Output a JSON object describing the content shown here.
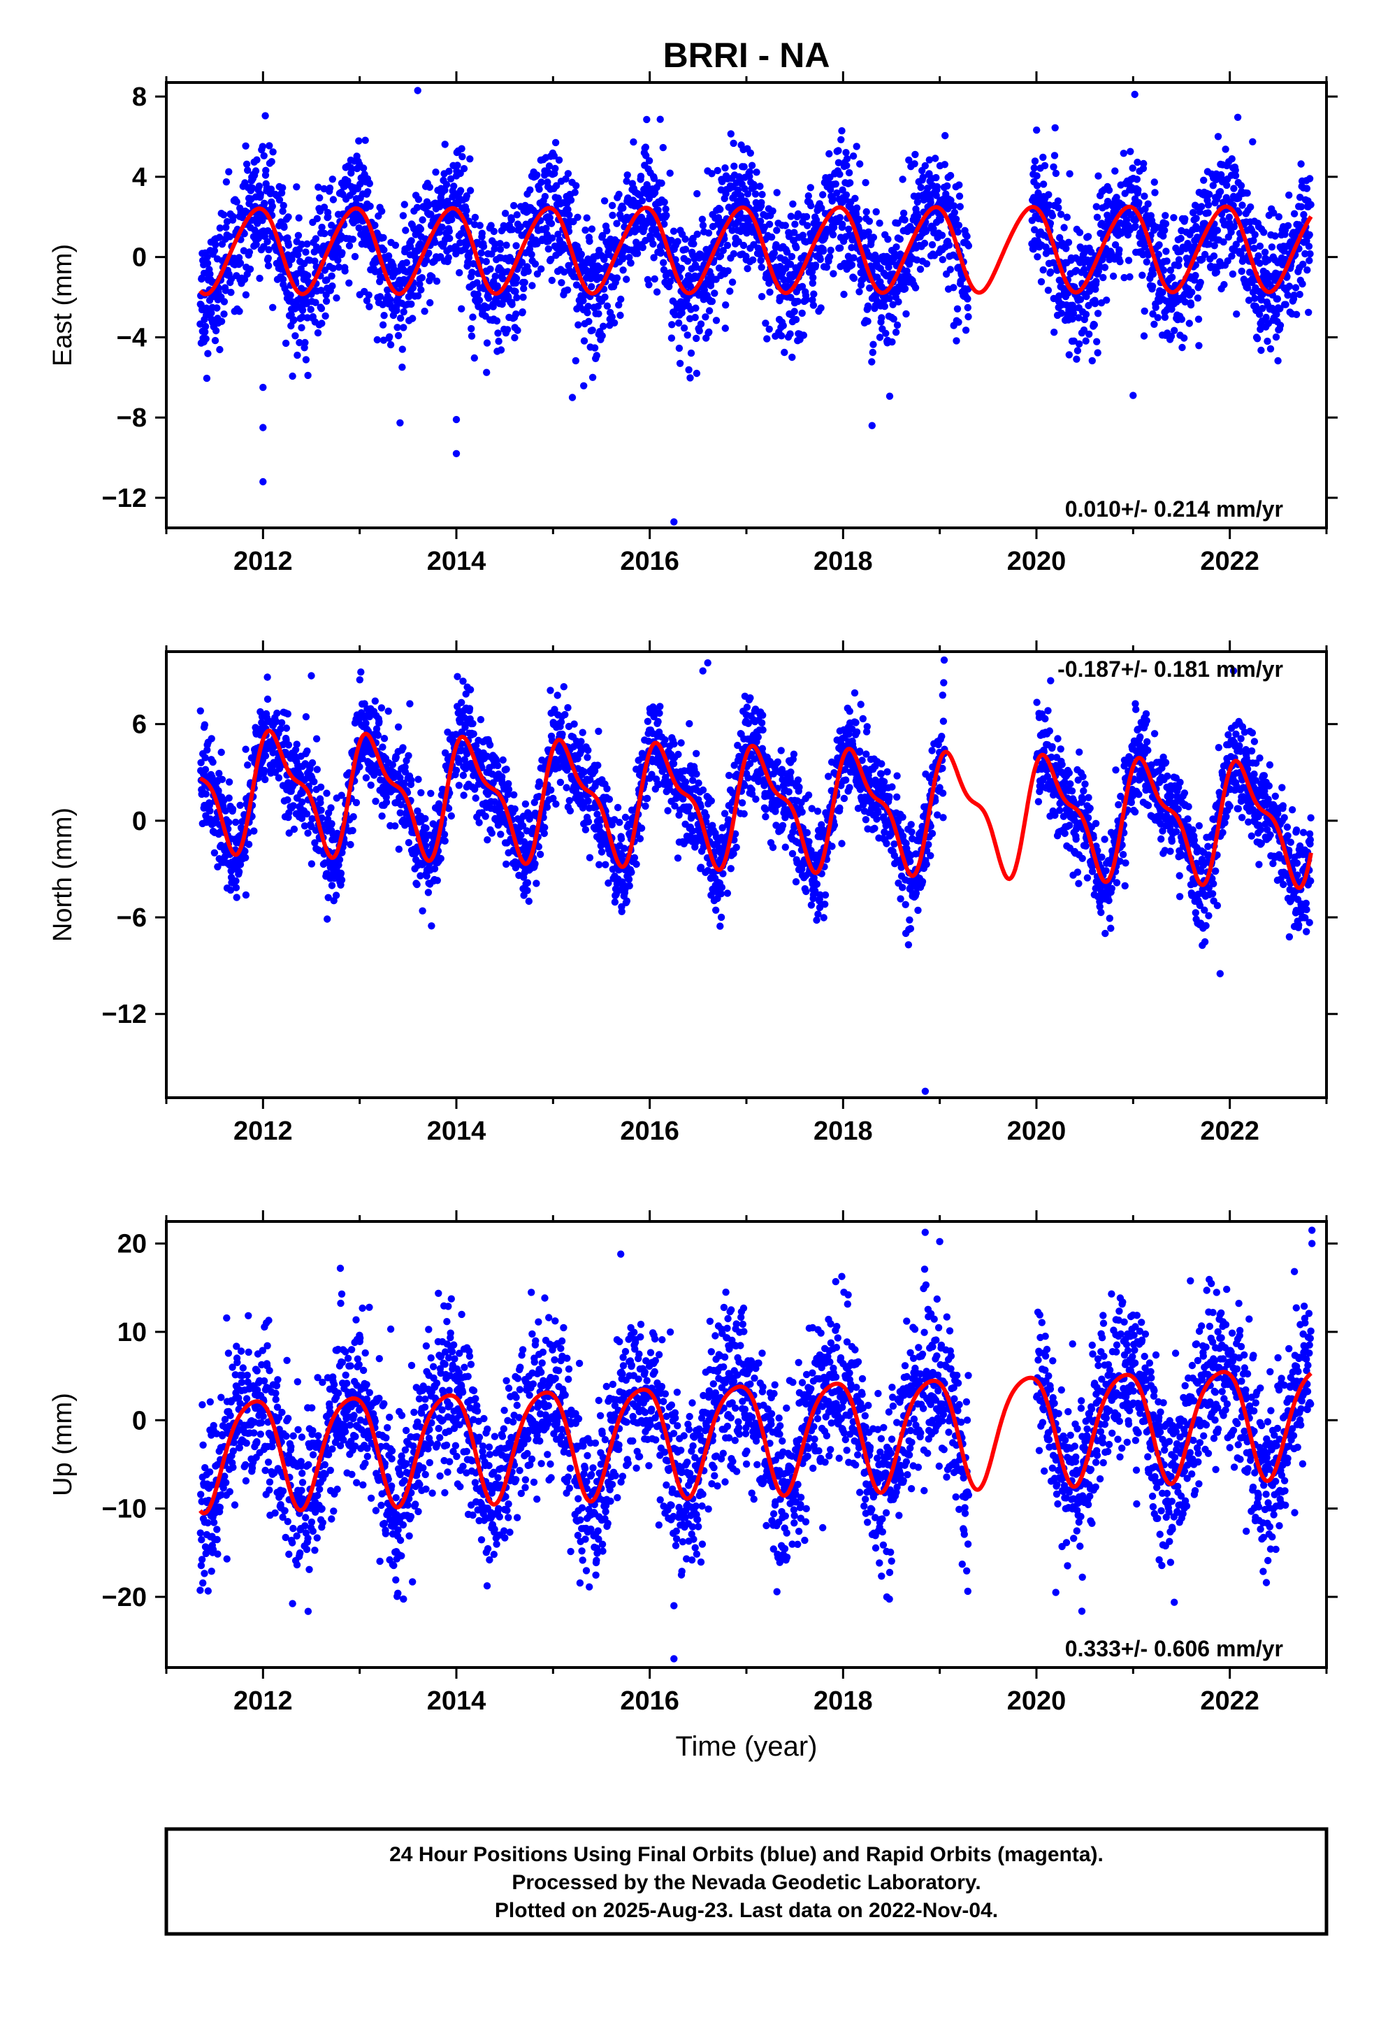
{
  "title": "BRRI - NA",
  "colors": {
    "dots": "#0000ff",
    "model": "#ff0000",
    "frame": "#000000"
  },
  "footer": {
    "line1": "24 Hour Positions Using Final Orbits (blue) and Rapid Orbits (magenta).",
    "line2": "Processed by the Nevada Geodetic Laboratory.",
    "line3": "Plotted on 2025-Aug-23. Last data on 2022-Nov-04."
  },
  "chart_data": [
    {
      "type": "scatter",
      "ylabel": "East (mm)",
      "xlabel": "",
      "rate": "0.010+/- 0.214 mm/yr",
      "rate_position": "bottom-right",
      "xlim": [
        2011.0,
        2023.0
      ],
      "ylim": [
        -13.5,
        8.7
      ],
      "x_ticks": [
        2012,
        2014,
        2016,
        2018,
        2020,
        2022
      ],
      "y_ticks": [
        -12,
        -8,
        -4,
        0,
        4,
        8
      ],
      "y_tick_labels": [
        "−12",
        "−8",
        "−4",
        "0",
        "4",
        "8"
      ],
      "model": {
        "offset": 0.4,
        "rate": 0.01,
        "annual_amp": 2.1,
        "annual_phase": 2.0,
        "semi_amp": 0.2,
        "semi_phase": 0.5
      },
      "data_span": [
        2011.35,
        2022.84
      ],
      "scatter_sd": 1.6,
      "gaps": [
        [
          2019.3,
          2019.95
        ]
      ],
      "outliers": [
        [
          2012.0,
          -11.2
        ],
        [
          2012.0,
          -8.5
        ],
        [
          2012.0,
          -6.5
        ],
        [
          2014.0,
          -9.8
        ],
        [
          2014.0,
          -8.1
        ],
        [
          2013.6,
          8.3
        ],
        [
          2016.25,
          -13.2
        ],
        [
          2018.3,
          -8.4
        ],
        [
          2015.2,
          -7.0
        ],
        [
          2021.0,
          -6.9
        ]
      ]
    },
    {
      "type": "scatter",
      "ylabel": "North (mm)",
      "xlabel": "",
      "rate": "-0.187+/- 0.181 mm/yr",
      "rate_position": "top-right",
      "xlim": [
        2011.0,
        2023.0
      ],
      "ylim": [
        -17.2,
        10.5
      ],
      "x_ticks": [
        2012,
        2014,
        2016,
        2018,
        2020,
        2022
      ],
      "y_ticks": [
        -12,
        -6,
        0,
        6
      ],
      "y_tick_labels": [
        "−12",
        "−6",
        "0",
        "6"
      ],
      "model": {
        "offset": 1.0,
        "rate": -0.187,
        "annual_amp": 3.2,
        "annual_phase": 0.6,
        "semi_amp": 1.3,
        "semi_phase": 1.5
      },
      "data_span": [
        2011.35,
        2022.84
      ],
      "scatter_sd": 1.5,
      "gaps": [
        [
          2019.05,
          2020.0
        ]
      ],
      "outliers": [
        [
          2018.85,
          -16.8
        ],
        [
          2012.5,
          9.0
        ],
        [
          2016.6,
          9.8
        ],
        [
          2021.9,
          -9.5
        ],
        [
          2016.55,
          9.3
        ]
      ]
    },
    {
      "type": "scatter",
      "ylabel": "Up (mm)",
      "xlabel": "Time (year)",
      "rate": "0.333+/- 0.606 mm/yr",
      "rate_position": "bottom-right",
      "xlim": [
        2011.0,
        2023.0
      ],
      "ylim": [
        -28.0,
        22.5
      ],
      "x_ticks": [
        2012,
        2014,
        2016,
        2018,
        2020,
        2022
      ],
      "y_ticks": [
        -20,
        -10,
        0,
        10,
        20
      ],
      "y_tick_labels": [
        "−20",
        "−10",
        "0",
        "10",
        "20"
      ],
      "model": {
        "offset": -1.5,
        "rate": 0.333,
        "annual_amp": 6.2,
        "annual_phase": 2.2,
        "semi_amp": 1.0,
        "semi_phase": 0.0
      },
      "data_span": [
        2011.35,
        2022.84
      ],
      "scatter_sd": 4.5,
      "gaps": [
        [
          2019.3,
          2020.0
        ]
      ],
      "outliers": [
        [
          2016.25,
          -27.0
        ],
        [
          2016.25,
          -21.0
        ],
        [
          2022.85,
          21.5
        ],
        [
          2022.85,
          20.0
        ],
        [
          2015.7,
          18.8
        ],
        [
          2012.8,
          17.2
        ],
        [
          2020.2,
          -19.5
        ]
      ]
    }
  ]
}
